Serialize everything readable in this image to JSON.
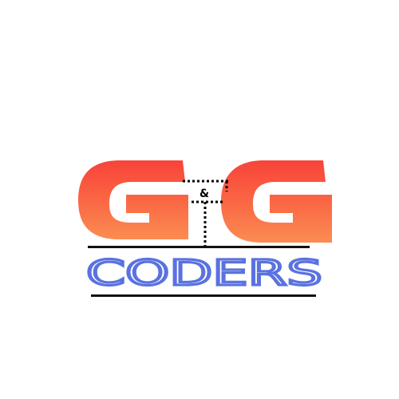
{
  "logo": {
    "first_letter": "G",
    "ampersand": "&",
    "second_letter": "G",
    "wordmark": "CODERS",
    "colors": {
      "gradient_top": "#f8433a",
      "gradient_bottom": "#fb8d52",
      "wordmark": "#5a72e0",
      "rules": "#111111",
      "dots": "#000000",
      "background": "#ffffff"
    }
  }
}
